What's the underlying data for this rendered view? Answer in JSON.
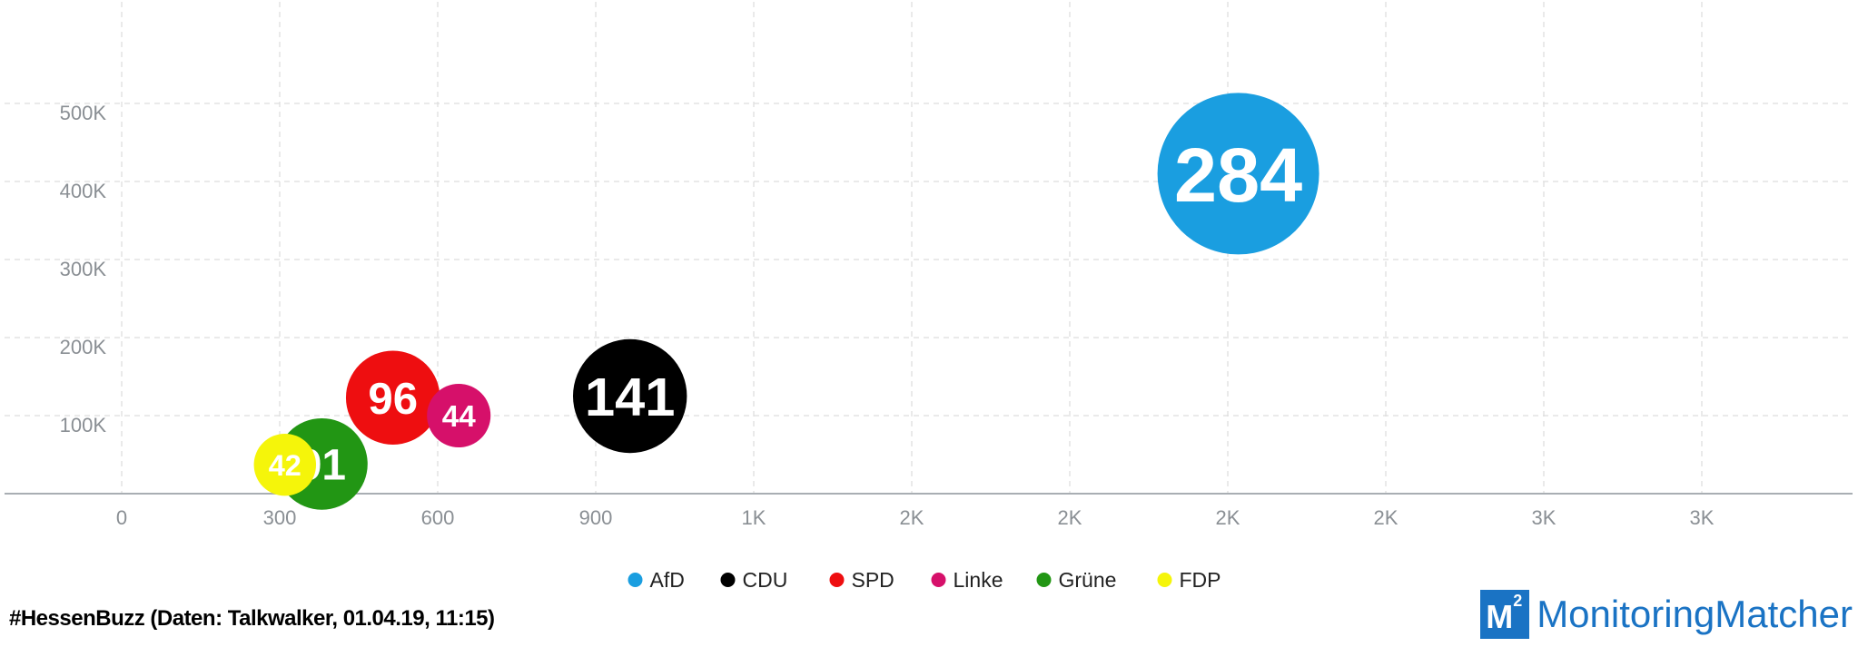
{
  "chart_data": {
    "type": "scatter",
    "x_ticks": [
      "0",
      "300",
      "600",
      "900",
      "1K",
      "2K",
      "2K",
      "2K",
      "2K",
      "3K",
      "3K"
    ],
    "y_ticks": [
      "100K",
      "200K",
      "300K",
      "400K",
      "500K"
    ],
    "xlim": [
      0,
      3300
    ],
    "ylim": [
      0,
      630000
    ],
    "grid": true,
    "legend_position": "bottom",
    "series": [
      {
        "name": "AfD",
        "color": "#1a9ee0",
        "x": 2120,
        "y": 410000,
        "size": 284,
        "label": "284"
      },
      {
        "name": "CDU",
        "color": "#000000",
        "x": 965,
        "y": 125000,
        "size": 141,
        "label": "141"
      },
      {
        "name": "SPD",
        "color": "#ee0e10",
        "x": 515,
        "y": 123000,
        "size": 96,
        "label": "96"
      },
      {
        "name": "Linke",
        "color": "#d6106a",
        "x": 640,
        "y": 100000,
        "size": 44,
        "label": "44"
      },
      {
        "name": "Grüne",
        "color": "#229614",
        "x": 380,
        "y": 38000,
        "size": 91,
        "label": "91"
      },
      {
        "name": "FDP",
        "color": "#f5f50a",
        "x": 310,
        "y": 37000,
        "size": 42,
        "label": "42"
      }
    ]
  },
  "footer": {
    "source_text": "#HessenBuzz (Daten: Talkwalker, 01.04.19, 11:15)"
  },
  "brand": {
    "mark_letter": "M",
    "mark_superscript": "2",
    "name": "MonitoringMatcher",
    "color": "#1a73c4"
  }
}
